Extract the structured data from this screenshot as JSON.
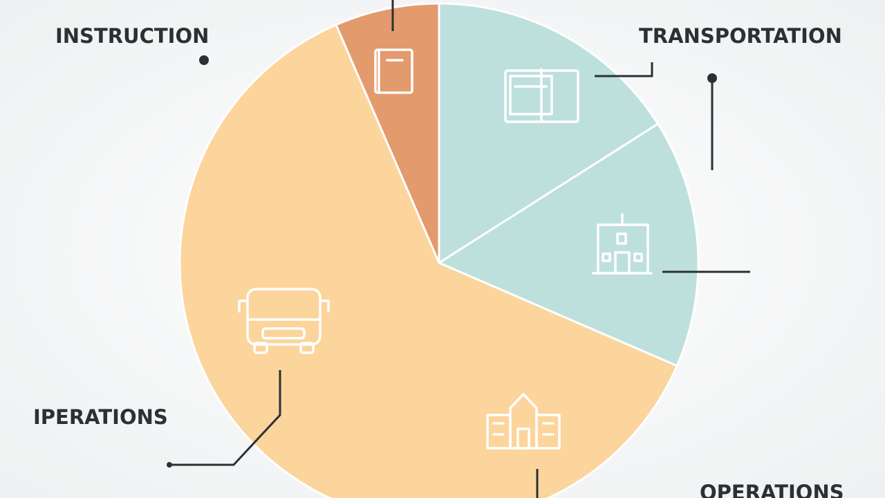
{
  "chart_data": {
    "type": "pie",
    "categories": [
      "TRANSPORTATION",
      "OPERATIONS",
      "IPERATIONS",
      "INSTRUCTION"
    ],
    "values": [
      16,
      15.5,
      62,
      6.5
    ],
    "colors": [
      "#bde0dd",
      "#bde0dd",
      "#fbd59c",
      "#e39a6c"
    ]
  }
}
